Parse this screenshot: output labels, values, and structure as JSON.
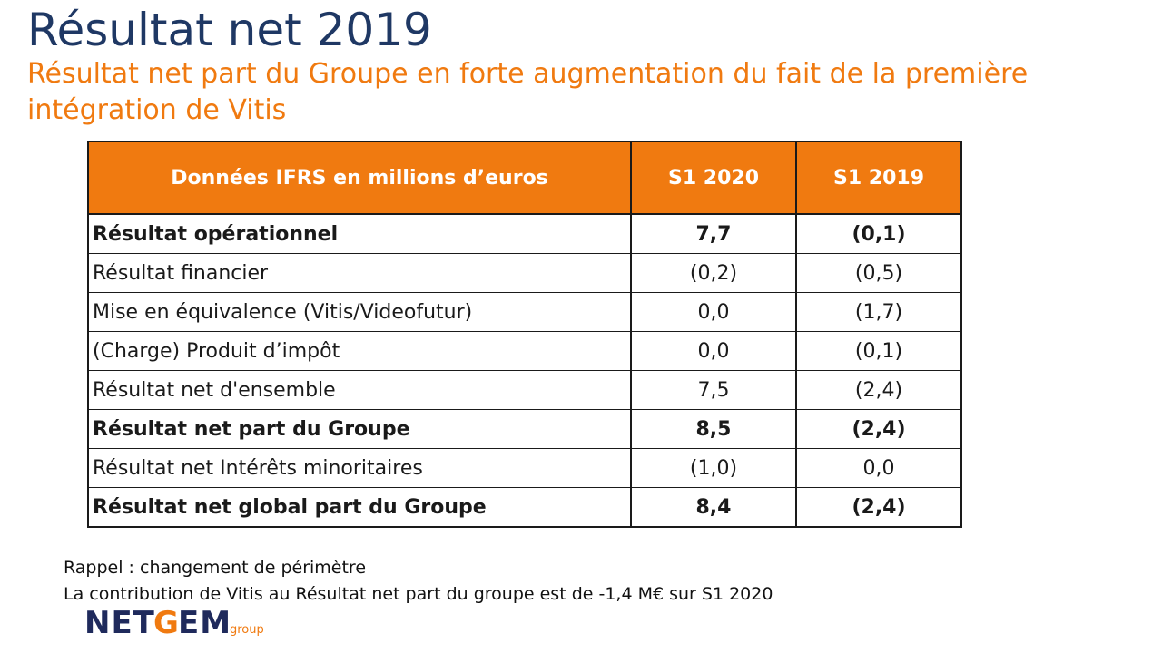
{
  "title": "Résultat net 2019",
  "subtitle": "Résultat net part du Groupe en forte augmentation du fait de la première intégration de Vitis",
  "table": {
    "headers": [
      "Données IFRS en millions d’euros",
      "S1 2020",
      "S1 2019"
    ],
    "rows": [
      {
        "label": "Résultat opérationnel",
        "s1_2020": "7,7",
        "s1_2019": "(0,1)",
        "bold": true
      },
      {
        "label": "Résultat financier",
        "s1_2020": "(0,2)",
        "s1_2019": "(0,5)",
        "bold": false
      },
      {
        "label": "Mise en équivalence (Vitis/Videofutur)",
        "s1_2020": "0,0",
        "s1_2019": "(1,7)",
        "bold": false
      },
      {
        "label": "(Charge) Produit d’impôt",
        "s1_2020": "0,0",
        "s1_2019": "(0,1)",
        "bold": false
      },
      {
        "label": "Résultat net d'ensemble",
        "s1_2020": "7,5",
        "s1_2019": "(2,4)",
        "bold": false
      },
      {
        "label": "Résultat net part du Groupe",
        "s1_2020": "8,5",
        "s1_2019": "(2,4)",
        "bold": true
      },
      {
        "label": "Résultat net Intérêts minoritaires",
        "s1_2020": "(1,0)",
        "s1_2019": "0,0",
        "bold": false
      },
      {
        "label": "Résultat net global part du Groupe",
        "s1_2020": "8,4",
        "s1_2019": "(2,4)",
        "bold": true
      }
    ]
  },
  "notes": {
    "line1": "Rappel : changement de périmètre",
    "line2": "La contribution de Vitis au Résultat net part du groupe est de -1,4 M€ sur S1 2020"
  },
  "logo": {
    "text": "NETGEM",
    "suffix": "group"
  },
  "colors": {
    "title": "#1f3864",
    "accent": "#f07a10",
    "logo_dark": "#1f2a5c"
  }
}
